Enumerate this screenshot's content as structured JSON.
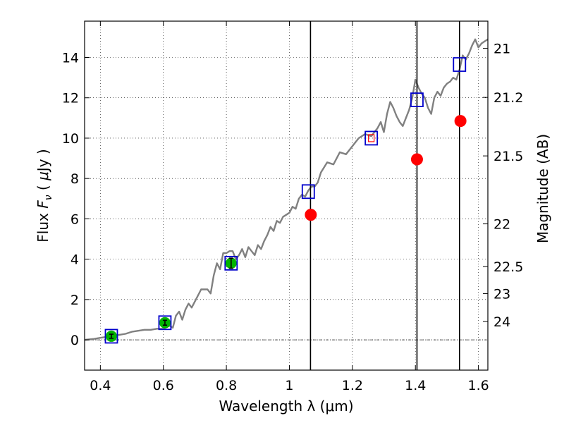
{
  "chart_data": {
    "type": "line",
    "title": "",
    "xlabel": "Wavelength  λ (μm)",
    "ylabel_left_prefix": "Flux  ",
    "ylabel_left_symbol": "F",
    "ylabel_left_sub": "ν",
    "ylabel_left_unit_open": "  ( ",
    "ylabel_left_mu": "μ",
    "ylabel_left_unit_close": "Jy )",
    "ylabel_right": "Magnitude (AB)",
    "xlim": [
      0.35,
      1.63
    ],
    "ylim": [
      -1.5,
      15.8
    ],
    "grid": true,
    "x_ticks": [
      0.4,
      0.6,
      0.8,
      1.0,
      1.2,
      1.4,
      1.6
    ],
    "x_tick_labels": [
      "0.4",
      "0.6",
      "0.8",
      "1",
      "1.2",
      "1.4",
      "1.6"
    ],
    "y_ticks": [
      0,
      2,
      4,
      6,
      8,
      10,
      12,
      14
    ],
    "y_tick_labels": [
      "0",
      "2",
      "4",
      "6",
      "8",
      "10",
      "12",
      "14"
    ],
    "right_ticks": [
      {
        "label": "21",
        "flux": 14.45
      },
      {
        "label": "21.2",
        "flux": 12.02
      },
      {
        "label": "21.5",
        "flux": 9.12
      },
      {
        "label": "22",
        "flux": 5.75
      },
      {
        "label": "22.5",
        "flux": 3.63
      },
      {
        "label": "23",
        "flux": 2.29
      },
      {
        "label": "24",
        "flux": 0.91
      }
    ],
    "vertical_lines": [
      1.067,
      1.405,
      1.54
    ],
    "spectrum": {
      "name": "model spectrum",
      "color": "#808080",
      "x": [
        0.35,
        0.38,
        0.4,
        0.42,
        0.44,
        0.46,
        0.48,
        0.5,
        0.52,
        0.54,
        0.56,
        0.58,
        0.6,
        0.62,
        0.63,
        0.64,
        0.65,
        0.66,
        0.67,
        0.68,
        0.69,
        0.7,
        0.72,
        0.74,
        0.75,
        0.76,
        0.77,
        0.78,
        0.79,
        0.8,
        0.81,
        0.82,
        0.83,
        0.84,
        0.85,
        0.86,
        0.87,
        0.88,
        0.89,
        0.9,
        0.91,
        0.92,
        0.93,
        0.94,
        0.95,
        0.96,
        0.97,
        0.98,
        0.99,
        1.0,
        1.01,
        1.02,
        1.03,
        1.04,
        1.05,
        1.06,
        1.07,
        1.08,
        1.09,
        1.1,
        1.12,
        1.14,
        1.16,
        1.18,
        1.2,
        1.22,
        1.24,
        1.26,
        1.27,
        1.28,
        1.29,
        1.3,
        1.31,
        1.32,
        1.33,
        1.34,
        1.35,
        1.36,
        1.37,
        1.38,
        1.39,
        1.4,
        1.41,
        1.42,
        1.43,
        1.44,
        1.45,
        1.46,
        1.47,
        1.48,
        1.49,
        1.5,
        1.51,
        1.52,
        1.53,
        1.54,
        1.55,
        1.56,
        1.57,
        1.58,
        1.59,
        1.6,
        1.61,
        1.62,
        1.63
      ],
      "y": [
        0.0,
        0.05,
        0.1,
        0.15,
        0.2,
        0.25,
        0.3,
        0.4,
        0.45,
        0.5,
        0.5,
        0.55,
        0.55,
        0.7,
        0.6,
        1.2,
        1.4,
        1.0,
        1.5,
        1.8,
        1.6,
        1.9,
        2.5,
        2.5,
        2.3,
        3.2,
        3.8,
        3.5,
        4.3,
        4.3,
        4.4,
        4.4,
        4.0,
        4.2,
        4.5,
        4.1,
        4.6,
        4.4,
        4.2,
        4.7,
        4.5,
        4.9,
        5.2,
        5.6,
        5.4,
        5.9,
        5.8,
        6.1,
        6.2,
        6.3,
        6.6,
        6.5,
        7.0,
        7.2,
        7.1,
        7.4,
        7.6,
        7.6,
        7.8,
        8.3,
        8.8,
        8.7,
        9.3,
        9.2,
        9.6,
        10.0,
        10.2,
        10.1,
        10.3,
        10.5,
        10.8,
        10.3,
        11.2,
        11.8,
        11.5,
        11.1,
        10.8,
        10.6,
        11.0,
        11.4,
        12.0,
        12.9,
        12.5,
        12.2,
        12.0,
        11.5,
        11.2,
        12.0,
        12.3,
        12.1,
        12.5,
        12.7,
        12.8,
        13.0,
        12.9,
        13.4,
        14.1,
        13.9,
        14.2,
        14.6,
        14.9,
        14.5,
        14.7,
        14.8,
        14.9
      ]
    },
    "observed_points": {
      "name": "observed (green)",
      "color": "#00b400",
      "x": [
        0.435,
        0.605,
        0.815
      ],
      "y": [
        0.18,
        0.85,
        3.8
      ],
      "yerr": [
        0.1,
        0.12,
        0.25
      ]
    },
    "model_photometry": {
      "name": "model photometry (open squares)",
      "color": "#0000cc",
      "x": [
        0.435,
        0.605,
        0.815,
        1.06,
        1.26,
        1.405,
        1.54
      ],
      "y": [
        0.18,
        0.85,
        3.8,
        7.35,
        10.0,
        11.9,
        13.65
      ]
    },
    "red_points": {
      "name": "upper points (red)",
      "color": "#ff0000",
      "x": [
        1.068,
        1.405,
        1.543
      ],
      "y": [
        6.2,
        8.95,
        10.85
      ]
    },
    "red_marker_in_square": {
      "x": 1.26,
      "y": 10.0
    }
  }
}
